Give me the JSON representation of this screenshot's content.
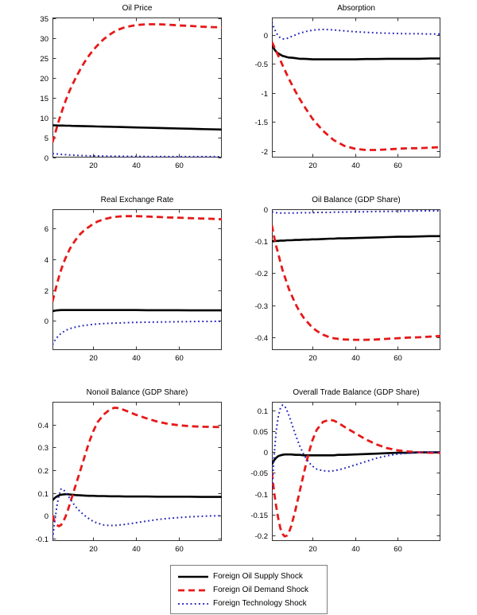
{
  "figure": {
    "background": "#ffffff"
  },
  "colors": {
    "supply": "#000000",
    "demand": "#e61919",
    "technology": "#2323bb",
    "axis": "#333333"
  },
  "legend": {
    "items": [
      {
        "label": "Foreign Oil Supply Shock",
        "style": "solid",
        "color": "#000000"
      },
      {
        "label": "Foreign Oil Demand Shock",
        "style": "dashed",
        "color": "#e61919"
      },
      {
        "label": "Foreign Technology Shock",
        "style": "dotted",
        "color": "#2323bb"
      }
    ],
    "position": "bottom-center"
  },
  "chart_data": [
    {
      "type": "line",
      "title": "Oil Price",
      "xlim": [
        1,
        80
      ],
      "ylim": [
        0,
        35.2
      ],
      "xticks": [
        20,
        40,
        60
      ],
      "xtick_labels": [
        "20",
        "40",
        "60"
      ],
      "yticks": [
        0,
        5,
        10,
        15,
        20,
        25,
        30,
        35
      ],
      "ytick_labels": [
        "0",
        "5",
        "10",
        "15",
        "20",
        "25",
        "30",
        "35"
      ],
      "x": [
        1,
        2,
        3,
        4,
        5,
        6,
        7,
        8,
        9,
        10,
        12,
        14,
        16,
        18,
        20,
        22,
        25,
        28,
        30,
        32,
        35,
        40,
        45,
        50,
        55,
        60,
        65,
        70,
        75,
        80
      ],
      "series": [
        {
          "name": "Foreign Oil Supply Shock",
          "style": "solid",
          "color": "#000000",
          "y": [
            8.1,
            8.08,
            8.07,
            8.05,
            8.04,
            8.03,
            8.01,
            8.0,
            7.99,
            7.97,
            7.94,
            7.92,
            7.89,
            7.86,
            7.84,
            7.81,
            7.77,
            7.73,
            7.7,
            7.68,
            7.64,
            7.57,
            7.5,
            7.44,
            7.37,
            7.3,
            7.24,
            7.17,
            7.1,
            7.04
          ]
        },
        {
          "name": "Foreign Oil Demand Shock",
          "style": "dashed",
          "color": "#e61919",
          "y": [
            3.8,
            5.6,
            7.5,
            9.3,
            11.0,
            12.6,
            14.1,
            15.5,
            16.8,
            18.0,
            20.2,
            22.2,
            24.0,
            25.6,
            27.0,
            28.2,
            29.8,
            31.0,
            31.7,
            32.2,
            32.8,
            33.3,
            33.5,
            33.5,
            33.4,
            33.2,
            33.1,
            32.9,
            32.8,
            32.7
          ]
        },
        {
          "name": "Foreign Technology Shock",
          "style": "dotted",
          "color": "#2323bb",
          "y": [
            1.0,
            0.95,
            0.9,
            0.85,
            0.8,
            0.76,
            0.72,
            0.68,
            0.65,
            0.62,
            0.56,
            0.52,
            0.48,
            0.45,
            0.42,
            0.4,
            0.37,
            0.35,
            0.33,
            0.32,
            0.3,
            0.28,
            0.26,
            0.25,
            0.24,
            0.23,
            0.22,
            0.21,
            0.21,
            0.2
          ]
        }
      ]
    },
    {
      "type": "line",
      "title": "Absorption",
      "xlim": [
        1,
        80
      ],
      "ylim": [
        -2.11,
        0.3
      ],
      "xticks": [
        20,
        40,
        60
      ],
      "xtick_labels": [
        "20",
        "40",
        "60"
      ],
      "yticks": [
        0,
        -0.5,
        -1,
        -1.5,
        -2
      ],
      "ytick_labels": [
        "0",
        "-0.5",
        "-1",
        "-1.5",
        "-2"
      ],
      "x": [
        1,
        2,
        3,
        4,
        5,
        6,
        7,
        8,
        9,
        10,
        12,
        14,
        16,
        18,
        20,
        22,
        25,
        28,
        30,
        32,
        35,
        40,
        45,
        50,
        55,
        60,
        65,
        70,
        75,
        80
      ],
      "series": [
        {
          "name": "Foreign Oil Supply Shock",
          "style": "solid",
          "color": "#000000",
          "y": [
            -0.16,
            -0.24,
            -0.29,
            -0.32,
            -0.34,
            -0.36,
            -0.37,
            -0.38,
            -0.39,
            -0.39,
            -0.4,
            -0.41,
            -0.41,
            -0.415,
            -0.42,
            -0.42,
            -0.42,
            -0.42,
            -0.42,
            -0.42,
            -0.42,
            -0.42,
            -0.415,
            -0.415,
            -0.41,
            -0.41,
            -0.41,
            -0.41,
            -0.405,
            -0.405
          ]
        },
        {
          "name": "Foreign Oil Demand Shock",
          "style": "dashed",
          "color": "#e61919",
          "y": [
            -0.12,
            -0.2,
            -0.28,
            -0.36,
            -0.44,
            -0.52,
            -0.6,
            -0.68,
            -0.76,
            -0.83,
            -0.97,
            -1.1,
            -1.22,
            -1.33,
            -1.44,
            -1.53,
            -1.65,
            -1.75,
            -1.81,
            -1.85,
            -1.91,
            -1.96,
            -1.98,
            -1.98,
            -1.97,
            -1.96,
            -1.95,
            -1.95,
            -1.94,
            -1.93
          ]
        },
        {
          "name": "Foreign Technology Shock",
          "style": "dotted",
          "color": "#2323bb",
          "y": [
            0.22,
            0.12,
            0.04,
            -0.02,
            -0.05,
            -0.07,
            -0.07,
            -0.06,
            -0.05,
            -0.03,
            0.0,
            0.03,
            0.05,
            0.07,
            0.08,
            0.09,
            0.095,
            0.09,
            0.085,
            0.08,
            0.07,
            0.055,
            0.045,
            0.035,
            0.03,
            0.025,
            0.02,
            0.02,
            0.015,
            0.015
          ]
        }
      ]
    },
    {
      "type": "line",
      "title": "Real Exchange Rate",
      "xlim": [
        1,
        80
      ],
      "ylim": [
        -1.9,
        7.25
      ],
      "xticks": [
        20,
        40,
        60
      ],
      "xtick_labels": [
        "20",
        "40",
        "60"
      ],
      "yticks": [
        0,
        2,
        4,
        6
      ],
      "ytick_labels": [
        "0",
        "2",
        "4",
        "6"
      ],
      "x": [
        1,
        2,
        3,
        4,
        5,
        6,
        7,
        8,
        9,
        10,
        12,
        14,
        16,
        18,
        20,
        22,
        25,
        28,
        30,
        32,
        35,
        40,
        45,
        50,
        55,
        60,
        65,
        70,
        75,
        80
      ],
      "series": [
        {
          "name": "Foreign Oil Supply Shock",
          "style": "solid",
          "color": "#000000",
          "y": [
            0.62,
            0.66,
            0.68,
            0.69,
            0.7,
            0.7,
            0.7,
            0.7,
            0.7,
            0.7,
            0.7,
            0.7,
            0.7,
            0.7,
            0.7,
            0.7,
            0.7,
            0.7,
            0.7,
            0.7,
            0.7,
            0.7,
            0.69,
            0.69,
            0.69,
            0.69,
            0.68,
            0.68,
            0.68,
            0.68
          ]
        },
        {
          "name": "Foreign Oil Demand Shock",
          "style": "dashed",
          "color": "#e61919",
          "y": [
            1.25,
            1.8,
            2.35,
            2.85,
            3.3,
            3.7,
            4.05,
            4.35,
            4.65,
            4.9,
            5.3,
            5.65,
            5.9,
            6.1,
            6.3,
            6.45,
            6.6,
            6.7,
            6.75,
            6.78,
            6.8,
            6.8,
            6.78,
            6.75,
            6.72,
            6.7,
            6.67,
            6.65,
            6.63,
            6.6
          ]
        },
        {
          "name": "Foreign Technology Shock",
          "style": "dotted",
          "color": "#2323bb",
          "y": [
            -1.55,
            -1.3,
            -1.1,
            -0.95,
            -0.82,
            -0.72,
            -0.64,
            -0.57,
            -0.52,
            -0.47,
            -0.4,
            -0.34,
            -0.3,
            -0.26,
            -0.23,
            -0.21,
            -0.18,
            -0.16,
            -0.15,
            -0.14,
            -0.12,
            -0.1,
            -0.09,
            -0.08,
            -0.07,
            -0.06,
            -0.05,
            -0.04,
            -0.04,
            -0.03
          ]
        }
      ]
    },
    {
      "type": "line",
      "title": "Oil Balance (GDP Share)",
      "xlim": [
        1,
        80
      ],
      "ylim": [
        -0.44,
        0
      ],
      "xticks": [
        20,
        40,
        60
      ],
      "xtick_labels": [
        "20",
        "40",
        "60"
      ],
      "yticks": [
        0,
        -0.1,
        -0.2,
        -0.3,
        -0.4
      ],
      "ytick_labels": [
        "0",
        "-0.1",
        "-0.2",
        "-0.3",
        "-0.4"
      ],
      "x": [
        1,
        2,
        3,
        4,
        5,
        6,
        7,
        8,
        9,
        10,
        12,
        14,
        16,
        18,
        20,
        22,
        25,
        28,
        30,
        32,
        35,
        40,
        45,
        50,
        55,
        60,
        65,
        70,
        75,
        80
      ],
      "series": [
        {
          "name": "Foreign Oil Supply Shock",
          "style": "solid",
          "color": "#000000",
          "y": [
            -0.1,
            -0.1,
            -0.099,
            -0.099,
            -0.098,
            -0.098,
            -0.098,
            -0.097,
            -0.097,
            -0.097,
            -0.096,
            -0.096,
            -0.095,
            -0.095,
            -0.094,
            -0.094,
            -0.093,
            -0.092,
            -0.092,
            -0.091,
            -0.091,
            -0.09,
            -0.089,
            -0.088,
            -0.087,
            -0.086,
            -0.086,
            -0.085,
            -0.084,
            -0.084
          ]
        },
        {
          "name": "Foreign Oil Demand Shock",
          "style": "dashed",
          "color": "#e61919",
          "y": [
            -0.05,
            -0.085,
            -0.115,
            -0.14,
            -0.165,
            -0.19,
            -0.21,
            -0.23,
            -0.25,
            -0.265,
            -0.295,
            -0.32,
            -0.34,
            -0.355,
            -0.37,
            -0.38,
            -0.392,
            -0.4,
            -0.403,
            -0.405,
            -0.407,
            -0.408,
            -0.408,
            -0.407,
            -0.405,
            -0.403,
            -0.401,
            -0.4,
            -0.398,
            -0.396
          ]
        },
        {
          "name": "Foreign Technology Shock",
          "style": "dotted",
          "color": "#2323bb",
          "y": [
            -0.008,
            -0.01,
            -0.011,
            -0.012,
            -0.012,
            -0.012,
            -0.012,
            -0.012,
            -0.012,
            -0.012,
            -0.012,
            -0.011,
            -0.011,
            -0.011,
            -0.011,
            -0.01,
            -0.01,
            -0.01,
            -0.009,
            -0.009,
            -0.009,
            -0.008,
            -0.008,
            -0.007,
            -0.007,
            -0.006,
            -0.006,
            -0.005,
            -0.005,
            -0.005
          ]
        }
      ]
    },
    {
      "type": "line",
      "title": "Nonoil Balance (GDP Share)",
      "xlim": [
        1,
        80
      ],
      "ylim": [
        -0.11,
        0.5
      ],
      "xticks": [
        20,
        40,
        60
      ],
      "xtick_labels": [
        "20",
        "40",
        "60"
      ],
      "yticks": [
        -0.1,
        0,
        0.1,
        0.2,
        0.3,
        0.4
      ],
      "ytick_labels": [
        "-0.1",
        "0",
        "0.1",
        "0.2",
        "0.3",
        "0.4"
      ],
      "x": [
        1,
        2,
        3,
        4,
        5,
        6,
        7,
        8,
        9,
        10,
        12,
        14,
        16,
        18,
        20,
        22,
        25,
        28,
        30,
        32,
        35,
        40,
        45,
        50,
        55,
        60,
        65,
        70,
        75,
        80
      ],
      "series": [
        {
          "name": "Foreign Oil Supply Shock",
          "style": "solid",
          "color": "#000000",
          "y": [
            0.068,
            0.078,
            0.085,
            0.09,
            0.093,
            0.094,
            0.095,
            0.095,
            0.094,
            0.093,
            0.091,
            0.09,
            0.089,
            0.088,
            0.088,
            0.087,
            0.087,
            0.086,
            0.086,
            0.086,
            0.085,
            0.085,
            0.085,
            0.084,
            0.084,
            0.084,
            0.084,
            0.083,
            0.083,
            0.083
          ]
        },
        {
          "name": "Foreign Oil Demand Shock",
          "style": "dashed",
          "color": "#e61919",
          "y": [
            0.0,
            -0.025,
            -0.04,
            -0.045,
            -0.04,
            -0.025,
            -0.005,
            0.02,
            0.05,
            0.08,
            0.14,
            0.2,
            0.26,
            0.32,
            0.37,
            0.41,
            0.445,
            0.468,
            0.474,
            0.472,
            0.462,
            0.443,
            0.427,
            0.413,
            0.403,
            0.397,
            0.393,
            0.391,
            0.39,
            0.389
          ]
        },
        {
          "name": "Foreign Technology Shock",
          "style": "dotted",
          "color": "#2323bb",
          "y": [
            -0.1,
            -0.03,
            0.04,
            0.09,
            0.118,
            0.117,
            0.105,
            0.092,
            0.078,
            0.063,
            0.038,
            0.018,
            0.002,
            -0.012,
            -0.024,
            -0.032,
            -0.04,
            -0.042,
            -0.042,
            -0.04,
            -0.037,
            -0.03,
            -0.023,
            -0.016,
            -0.011,
            -0.007,
            -0.004,
            -0.002,
            0.0,
            0.001
          ]
        }
      ]
    },
    {
      "type": "line",
      "title": "Overall Trade Balance (GDP Share)",
      "xlim": [
        1,
        80
      ],
      "ylim": [
        -0.213,
        0.12
      ],
      "xticks": [
        20,
        40,
        60
      ],
      "xtick_labels": [
        "20",
        "40",
        "60"
      ],
      "yticks": [
        0.1,
        0.05,
        0,
        -0.05,
        -0.1,
        -0.15,
        -0.2
      ],
      "ytick_labels": [
        "0.1",
        "0.05",
        "0",
        "-0.05",
        "-0.1",
        "-0.15",
        "-0.2"
      ],
      "x": [
        1,
        2,
        3,
        4,
        5,
        6,
        7,
        8,
        9,
        10,
        12,
        14,
        16,
        18,
        20,
        22,
        25,
        28,
        30,
        32,
        35,
        40,
        45,
        50,
        55,
        60,
        65,
        70,
        75,
        80
      ],
      "series": [
        {
          "name": "Foreign Oil Supply Shock",
          "style": "solid",
          "color": "#000000",
          "y": [
            -0.03,
            -0.02,
            -0.014,
            -0.01,
            -0.008,
            -0.007,
            -0.006,
            -0.006,
            -0.006,
            -0.006,
            -0.007,
            -0.007,
            -0.008,
            -0.008,
            -0.008,
            -0.008,
            -0.008,
            -0.008,
            -0.008,
            -0.007,
            -0.007,
            -0.006,
            -0.005,
            -0.004,
            -0.003,
            -0.002,
            -0.002,
            -0.001,
            -0.001,
            -0.001
          ]
        },
        {
          "name": "Foreign Oil Demand Shock",
          "style": "dashed",
          "color": "#e61919",
          "y": [
            -0.05,
            -0.095,
            -0.13,
            -0.16,
            -0.183,
            -0.196,
            -0.202,
            -0.2,
            -0.192,
            -0.178,
            -0.14,
            -0.095,
            -0.05,
            -0.008,
            0.028,
            0.053,
            0.072,
            0.077,
            0.075,
            0.07,
            0.06,
            0.045,
            0.03,
            0.018,
            0.009,
            0.004,
            0.001,
            -0.001,
            -0.002,
            -0.002
          ]
        },
        {
          "name": "Foreign Technology Shock",
          "style": "dotted",
          "color": "#2323bb",
          "y": [
            -0.095,
            -0.01,
            0.05,
            0.085,
            0.105,
            0.112,
            0.11,
            0.1,
            0.087,
            0.072,
            0.042,
            0.015,
            -0.007,
            -0.023,
            -0.034,
            -0.041,
            -0.045,
            -0.046,
            -0.045,
            -0.043,
            -0.039,
            -0.031,
            -0.023,
            -0.015,
            -0.009,
            -0.005,
            -0.003,
            -0.001,
            0.0,
            0.0
          ]
        }
      ]
    }
  ]
}
